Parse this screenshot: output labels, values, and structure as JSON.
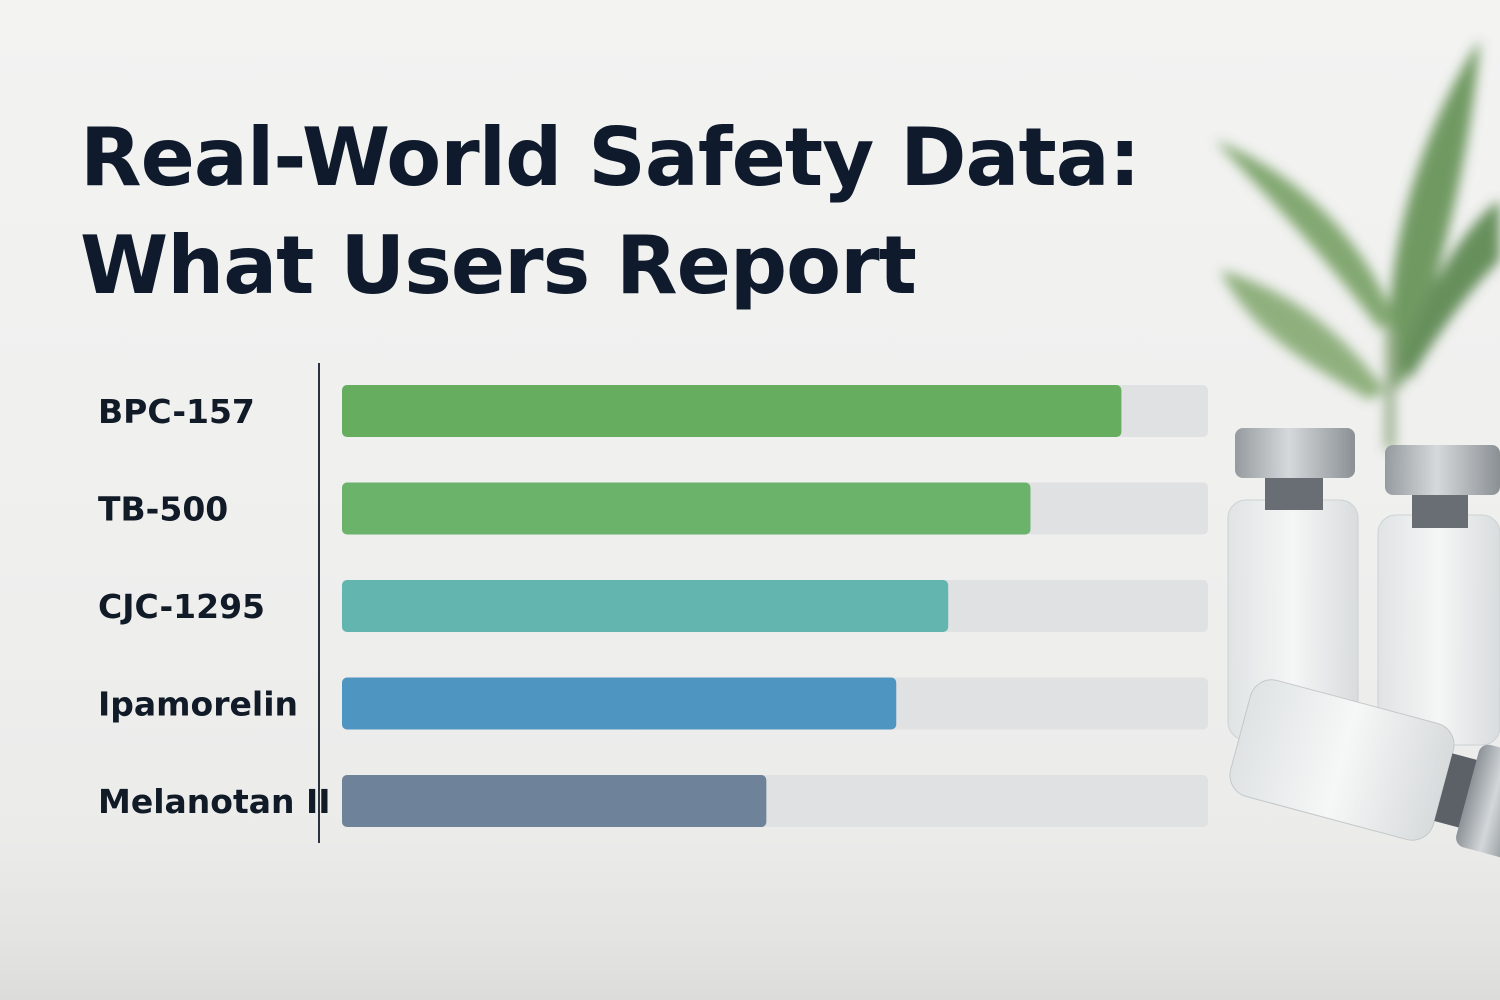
{
  "title_line1": "Real-World Safety Data:",
  "title_line2": "What Users Report",
  "chart_data": {
    "type": "bar",
    "orientation": "horizontal",
    "title": "Real-World Safety Data: What Users Report",
    "categories": [
      "BPC-157",
      "TB-500",
      "CJC-1295",
      "Ipamorelin",
      "Melanotan II"
    ],
    "values": [
      0.9,
      0.795,
      0.7,
      0.64,
      0.49
    ],
    "value_unit": "fraction of track",
    "colors": [
      "#66ad5f",
      "#6bb26b",
      "#63b6b0",
      "#4f95c1",
      "#6e8399"
    ],
    "track_color": "#e0e1e2",
    "xlim": [
      0,
      1
    ],
    "grid": false,
    "legend": "none"
  }
}
